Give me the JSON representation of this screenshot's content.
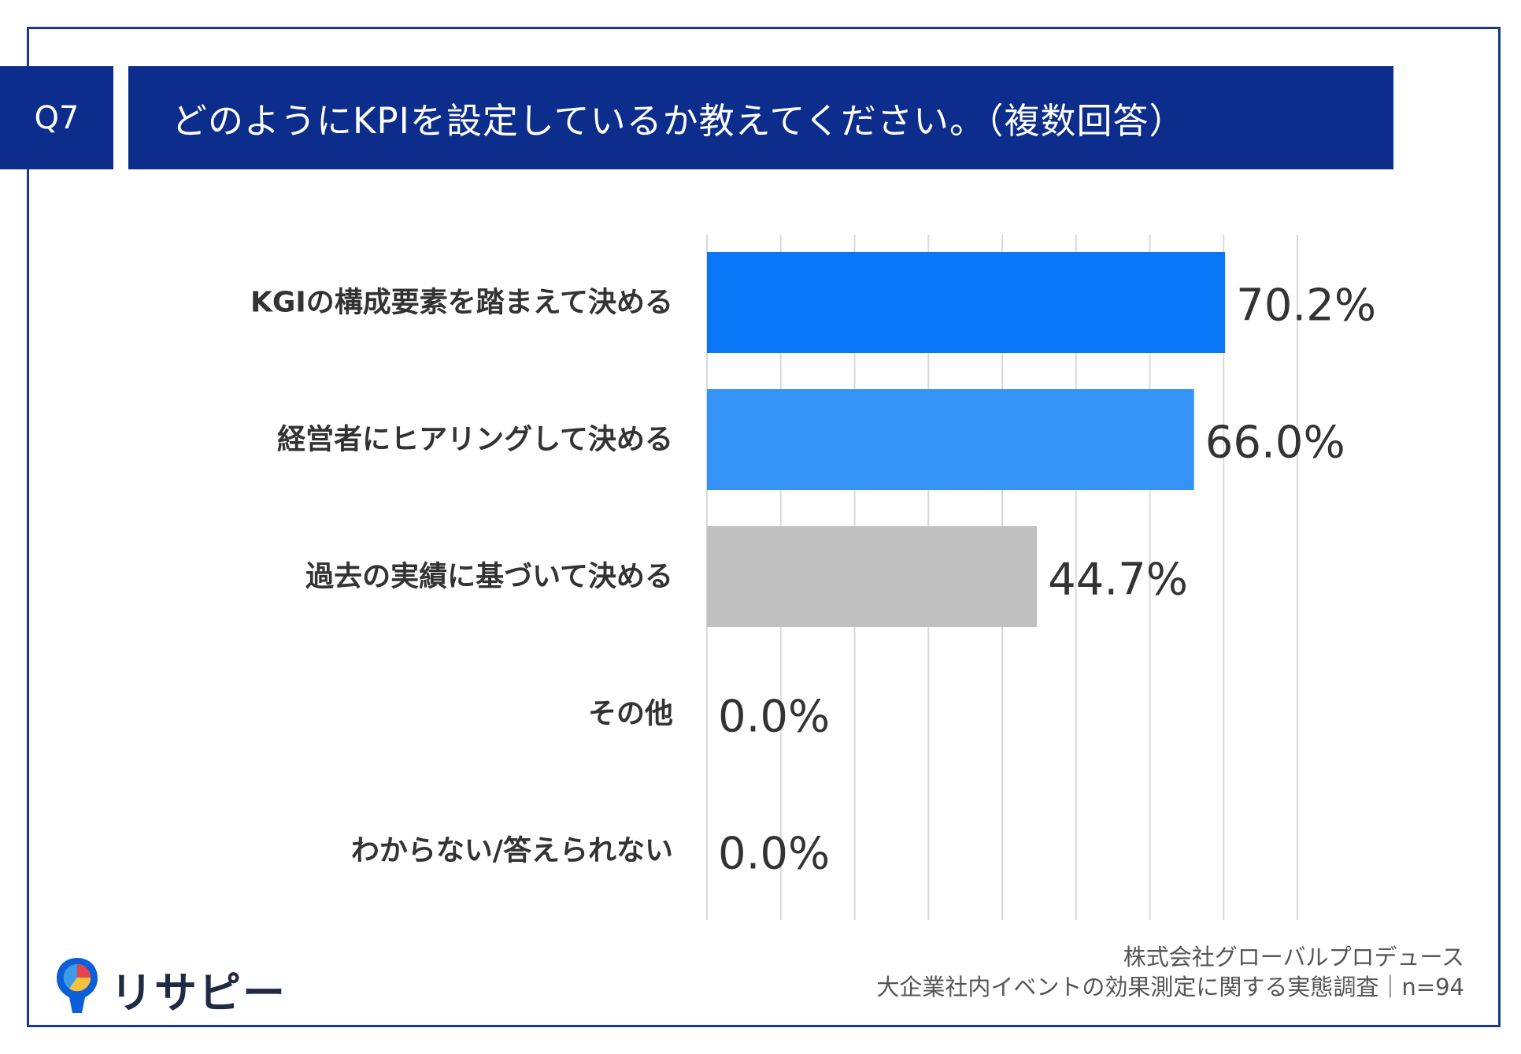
{
  "question": {
    "number": "Q7",
    "title": "どのようにKPIを設定しているか教えてください。（複数回答）"
  },
  "chart_data": {
    "type": "bar",
    "orientation": "horizontal",
    "categories": [
      "KGIの構成要素を踏まえて決める",
      "経営者にヒアリングして決める",
      "過去の実績に基づいて決める",
      "その他",
      "わからない/答えられない"
    ],
    "values": [
      70.2,
      66.0,
      44.7,
      0.0,
      0.0
    ],
    "value_labels": [
      "70.2%",
      "66.0%",
      "44.7%",
      "0.0%",
      "0.0%"
    ],
    "colors": [
      "#0a76f5",
      "#3593f7",
      "#c0c0c0",
      "#c0c0c0",
      "#c0c0c0"
    ],
    "xlim": [
      0,
      80
    ],
    "x_gridline_step": 10,
    "grid": true,
    "legend": "none"
  },
  "logo": {
    "text": "リサピー"
  },
  "footer": {
    "company": "株式会社グローバルプロデュース",
    "survey": "大企業社内イベントの効果測定に関する実態調査｜n=94"
  }
}
